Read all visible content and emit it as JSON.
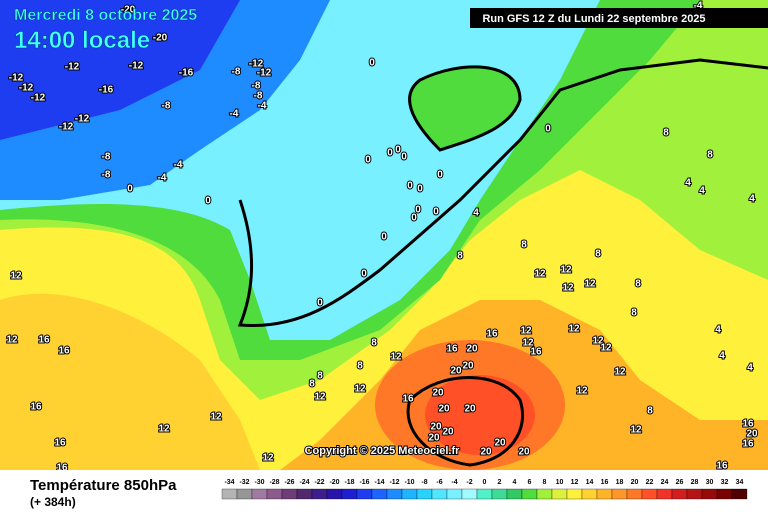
{
  "header": {
    "date": "Mercredi 8 octobre 2025",
    "time": "14:00 locale",
    "run": "Run GFS 12 Z du Lundi 22 septembre 2025"
  },
  "footer": {
    "title": "Température 850hPa",
    "lead": "(+ 384h)",
    "copyright": "Copyright © 2025 Meteociel.fr"
  },
  "legend": {
    "values": [
      -34,
      -32,
      -30,
      -28,
      -26,
      -24,
      -22,
      -20,
      -18,
      -16,
      -14,
      -12,
      -10,
      -8,
      -6,
      -4,
      -2,
      0,
      2,
      4,
      6,
      8,
      10,
      12,
      14,
      16,
      18,
      20,
      22,
      24,
      26,
      28,
      30,
      32,
      34
    ],
    "colors": [
      "#b4b4b4",
      "#969696",
      "#a07aa0",
      "#8c5a8c",
      "#6e3c78",
      "#50286e",
      "#3c1e8c",
      "#2814aa",
      "#1e1ed2",
      "#1e3cf0",
      "#1e64ff",
      "#1e8cff",
      "#1eb4ff",
      "#28d2ff",
      "#50e6ff",
      "#78f0ff",
      "#a0faff",
      "#50f0c8",
      "#3cdc96",
      "#32c864",
      "#50dc3c",
      "#a0f03c",
      "#dcf03c",
      "#fff03c",
      "#ffd232",
      "#ffb428",
      "#ff9628",
      "#ff7828",
      "#ff5028",
      "#f03228",
      "#d21e1e",
      "#b41414",
      "#960a0a",
      "#780000",
      "#500000"
    ]
  },
  "map": {
    "labels": [
      "-20",
      "-20",
      "-12",
      "-12",
      "-12",
      "-16",
      "-12",
      "-12",
      "-16",
      "-8",
      "-12",
      "-12",
      "-8",
      "-8",
      "-8",
      "-4",
      "-12",
      "-12",
      "-4",
      "-8",
      "-4",
      "-8",
      "-4",
      "0",
      "0",
      "0",
      "0",
      "0",
      "0",
      "0",
      "0",
      "0",
      "0",
      "0",
      "0",
      "0",
      "0",
      "0",
      "0",
      "0",
      "4",
      "8",
      "8",
      "8",
      "8",
      "4",
      "4",
      "4",
      "12",
      "12",
      "8",
      "12",
      "12",
      "8",
      "8",
      "4",
      "4",
      "4",
      "16",
      "12",
      "12",
      "12",
      "12",
      "12",
      "16",
      "20",
      "16",
      "8",
      "12",
      "8",
      "20",
      "20",
      "12",
      "8",
      "8",
      "12",
      "12",
      "16",
      "20",
      "20",
      "20",
      "12",
      "8",
      "12",
      "12",
      "20",
      "20",
      "20",
      "20",
      "20",
      "20",
      "12",
      "16",
      "20",
      "16",
      "12",
      "16",
      "12",
      "12",
      "16",
      "16",
      "16",
      "16",
      "16",
      "-4"
    ]
  }
}
